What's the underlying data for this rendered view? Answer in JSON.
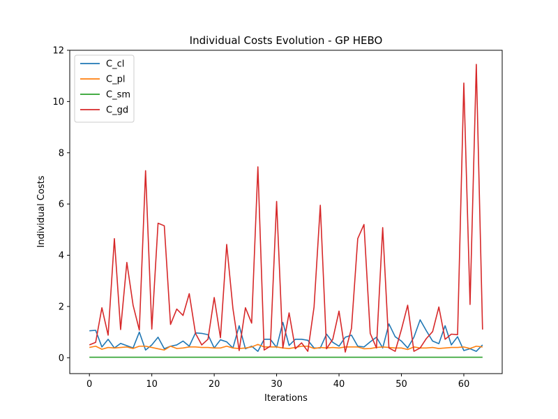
{
  "chart_data": {
    "type": "line",
    "title": "Individual Costs Evolution - GP HEBO",
    "xlabel": "Iterations",
    "ylabel": "Individual Costs",
    "xlim": [
      -3.15,
      66.15
    ],
    "ylim": [
      -0.62,
      12.0
    ],
    "xticks": [
      0,
      10,
      20,
      30,
      40,
      50,
      60
    ],
    "yticks": [
      0,
      2,
      4,
      6,
      8,
      10,
      12
    ],
    "grid": false,
    "legend_position": "top-left",
    "x": [
      0,
      1,
      2,
      3,
      4,
      5,
      6,
      7,
      8,
      9,
      10,
      11,
      12,
      13,
      14,
      15,
      16,
      17,
      18,
      19,
      20,
      21,
      22,
      23,
      24,
      25,
      26,
      27,
      28,
      29,
      30,
      31,
      32,
      33,
      34,
      35,
      36,
      37,
      38,
      39,
      40,
      41,
      42,
      43,
      44,
      45,
      46,
      47,
      48,
      49,
      50,
      51,
      52,
      53,
      54,
      55,
      56,
      57,
      58,
      59,
      60,
      61,
      62,
      63
    ],
    "series": [
      {
        "name": "C_cl",
        "color": "#1f77b4",
        "values": [
          1.05,
          1.07,
          0.42,
          0.72,
          0.38,
          0.56,
          0.47,
          0.38,
          1.0,
          0.3,
          0.5,
          0.8,
          0.35,
          0.45,
          0.5,
          0.65,
          0.45,
          0.97,
          0.95,
          0.9,
          0.38,
          0.7,
          0.62,
          0.38,
          1.25,
          0.35,
          0.45,
          0.25,
          0.72,
          0.72,
          0.4,
          1.38,
          0.48,
          0.72,
          0.72,
          0.68,
          0.38,
          0.38,
          0.92,
          0.6,
          0.45,
          0.8,
          0.88,
          0.45,
          0.42,
          0.62,
          0.8,
          0.38,
          1.32,
          0.82,
          0.65,
          0.38,
          0.8,
          1.48,
          1.05,
          0.65,
          0.55,
          1.25,
          0.5,
          0.82,
          0.28,
          0.35,
          0.25,
          0.5
        ]
      },
      {
        "name": "C_pl",
        "color": "#ff7f0e",
        "values": [
          0.4,
          0.45,
          0.33,
          0.4,
          0.38,
          0.4,
          0.42,
          0.36,
          0.45,
          0.45,
          0.4,
          0.35,
          0.3,
          0.45,
          0.36,
          0.38,
          0.42,
          0.42,
          0.4,
          0.4,
          0.38,
          0.38,
          0.45,
          0.38,
          0.36,
          0.38,
          0.42,
          0.52,
          0.42,
          0.42,
          0.42,
          0.38,
          0.36,
          0.4,
          0.45,
          0.45,
          0.36,
          0.4,
          0.38,
          0.4,
          0.38,
          0.42,
          0.42,
          0.42,
          0.35,
          0.36,
          0.4,
          0.42,
          0.4,
          0.38,
          0.38,
          0.32,
          0.42,
          0.38,
          0.38,
          0.4,
          0.36,
          0.38,
          0.4,
          0.4,
          0.42,
          0.36,
          0.45,
          0.42
        ]
      },
      {
        "name": "C_sm",
        "color": "#2ca02c",
        "values": [
          0.02,
          0.02,
          0.02,
          0.02,
          0.02,
          0.02,
          0.02,
          0.02,
          0.02,
          0.02,
          0.02,
          0.02,
          0.02,
          0.02,
          0.02,
          0.02,
          0.02,
          0.02,
          0.02,
          0.02,
          0.02,
          0.02,
          0.02,
          0.02,
          0.02,
          0.02,
          0.02,
          0.02,
          0.02,
          0.02,
          0.02,
          0.02,
          0.02,
          0.02,
          0.02,
          0.02,
          0.02,
          0.02,
          0.02,
          0.02,
          0.02,
          0.02,
          0.02,
          0.02,
          0.02,
          0.02,
          0.02,
          0.02,
          0.02,
          0.02,
          0.02,
          0.02,
          0.02,
          0.02,
          0.02,
          0.02,
          0.02,
          0.02,
          0.02,
          0.02,
          0.02,
          0.02,
          0.02,
          0.02
        ]
      },
      {
        "name": "C_gd",
        "color": "#d62728",
        "values": [
          0.5,
          0.6,
          1.95,
          0.88,
          4.65,
          1.1,
          3.72,
          2.05,
          1.08,
          7.3,
          1.12,
          5.25,
          5.15,
          1.3,
          1.9,
          1.65,
          2.5,
          0.95,
          0.5,
          0.72,
          2.35,
          0.78,
          4.42,
          1.92,
          0.28,
          1.95,
          1.35,
          7.45,
          0.3,
          0.45,
          6.1,
          0.38,
          1.75,
          0.35,
          0.58,
          0.25,
          1.98,
          5.95,
          0.35,
          0.72,
          1.82,
          0.22,
          1.15,
          4.65,
          5.2,
          0.95,
          0.38,
          5.08,
          0.38,
          0.25,
          1.1,
          2.05,
          0.25,
          0.38,
          0.75,
          1.02,
          1.98,
          0.72,
          0.92,
          0.9,
          10.72,
          2.08,
          11.45,
          1.1
        ]
      }
    ]
  }
}
